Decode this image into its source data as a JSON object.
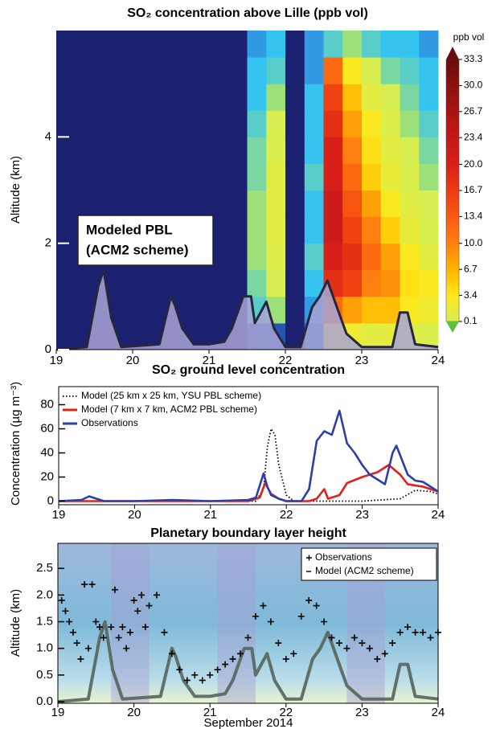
{
  "chart_data": [
    {
      "type": "heatmap",
      "title": "SO₂ concentration above Lille (ppb vol)",
      "ylabel": "Altitude (km)",
      "colorbar_label": "ppb vol",
      "annotation": [
        "Modeled PBL",
        "(ACM2 scheme)"
      ],
      "x": [
        19.125,
        19.375,
        19.625,
        19.875,
        20.125,
        20.375,
        20.625,
        20.875,
        21.125,
        21.375,
        21.625,
        21.875,
        22.125,
        22.375,
        22.625,
        22.875,
        23.125,
        23.375,
        23.625,
        23.875
      ],
      "y": [
        0.25,
        0.75,
        1.25,
        1.75,
        2.25,
        2.75,
        3.25,
        3.75,
        4.25,
        4.75,
        5.25,
        5.75
      ],
      "values": [
        [
          0,
          0,
          0,
          0,
          0,
          0,
          0,
          0,
          0,
          0,
          0,
          0
        ],
        [
          0,
          0,
          0,
          0,
          0,
          0,
          0,
          0,
          0,
          0,
          0,
          0
        ],
        [
          0,
          0,
          0,
          0,
          0,
          0,
          0,
          0,
          0,
          0,
          0,
          0
        ],
        [
          0,
          0,
          0,
          0,
          0,
          0,
          0,
          0,
          0,
          0,
          0,
          0
        ],
        [
          0,
          0,
          0,
          0,
          0,
          0,
          0,
          0,
          0,
          0,
          0,
          0
        ],
        [
          0,
          0,
          0,
          0,
          0,
          0,
          0,
          0,
          0,
          0,
          0,
          0
        ],
        [
          0,
          0,
          0,
          0,
          0,
          0,
          0,
          0,
          0,
          0,
          0,
          0
        ],
        [
          0,
          0,
          0,
          0,
          0,
          0,
          0,
          0,
          0,
          0,
          0,
          0
        ],
        [
          0,
          0,
          0,
          0,
          0,
          0,
          0,
          0,
          0,
          0,
          0,
          0
        ],
        [
          0,
          0,
          0,
          0,
          0,
          0,
          0,
          0,
          0,
          0,
          0,
          0
        ],
        [
          0.02,
          0.06,
          0.07,
          0.08,
          0.08,
          0.08,
          0.07,
          0.07,
          0.06,
          0.05,
          0.05,
          0.04
        ],
        [
          0.02,
          0.08,
          0.1,
          0.5,
          1,
          1,
          0.8,
          0.3,
          0.1,
          0.08,
          0.06,
          0.05
        ],
        [
          0,
          0,
          0,
          0,
          0,
          0,
          0,
          0,
          0,
          0,
          0,
          0
        ],
        [
          0.03,
          0.04,
          0.05,
          0.06,
          0.05,
          0.05,
          0.06,
          0.05,
          0.05,
          0.05,
          0.04,
          0.04
        ],
        [
          3,
          12,
          18,
          20,
          22,
          22,
          20,
          20,
          18,
          16,
          12,
          0.06
        ],
        [
          2,
          8,
          16,
          18,
          16,
          14,
          12,
          10,
          8,
          6,
          3,
          0.08
        ],
        [
          1,
          6,
          10,
          12,
          10,
          8,
          5,
          4,
          3,
          1,
          0.1,
          0.06
        ],
        [
          1,
          6,
          9,
          8,
          5,
          3,
          1.5,
          1,
          0.5,
          0.1,
          0.07,
          0.05
        ],
        [
          0.5,
          3,
          4,
          3,
          1.5,
          0.8,
          0.3,
          0.1,
          0.08,
          0.07,
          0.06,
          0.05
        ],
        [
          0.3,
          2,
          3,
          1,
          0.3,
          0.1,
          0.08,
          0.07,
          0.06,
          0.05,
          0.05,
          0.04
        ]
      ],
      "xlim": [
        19,
        24
      ],
      "xticks": [
        19,
        20,
        21,
        22,
        23,
        24
      ],
      "ylim": [
        0,
        6
      ],
      "yticks": [
        0,
        2,
        4
      ],
      "colorbar_ticks": [
        0.1,
        3.4,
        6.7,
        {
          "value": 10,
          "label": "10.0"
        },
        13.4,
        16.7,
        {
          "value": 20,
          "label": "20.0"
        },
        23.4,
        26.7,
        {
          "value": 30,
          "label": "30.0"
        },
        33.3
      ],
      "colorbar_colors": [
        "#d8ee50",
        "#ffe81a",
        "#ffb400",
        "#ff8010",
        "#f85a10",
        "#ee3a14",
        "#d82018",
        "#c41818",
        "#aa1414",
        "#8c1010",
        "#6a0c0c"
      ],
      "pbl": {
        "color": "#26263e",
        "fill": "#a8a4d4",
        "x": [
          19,
          19.4,
          19.55,
          19.62,
          19.72,
          19.85,
          20.35,
          20.5,
          20.55,
          20.65,
          20.8,
          21,
          21.2,
          21.3,
          21.45,
          21.55,
          21.6,
          21.75,
          21.85,
          22,
          22.2,
          22.35,
          22.45,
          22.55,
          22.65,
          22.8,
          23,
          23.4,
          23.5,
          23.6,
          23.7,
          24
        ],
        "values": [
          0,
          0.05,
          1.2,
          1.5,
          0.6,
          0.05,
          0.1,
          1,
          0.85,
          0.4,
          0.1,
          0.1,
          0.15,
          0.4,
          1,
          1,
          0.5,
          0.9,
          0.4,
          0.05,
          0.05,
          0.8,
          1,
          1.3,
          0.9,
          0.3,
          0.05,
          0.05,
          0.7,
          0.7,
          0.1,
          0.05
        ]
      }
    },
    {
      "type": "line",
      "title": "SO₂ ground level concentration",
      "ylabel": "Concentration (µg m⁻³)",
      "xlim": [
        19,
        24
      ],
      "xticks": [
        19,
        20,
        21,
        22,
        23,
        24
      ],
      "ylim": [
        -3,
        95
      ],
      "yticks": [
        0,
        20,
        40,
        60,
        80
      ],
      "legend": "upper left",
      "series": [
        {
          "name": "Model (25 km x 25 km, YSU PBL scheme)",
          "color": "#000000",
          "dash": "dotted",
          "x": [
            19,
            21.6,
            21.7,
            21.75,
            21.8,
            21.85,
            21.9,
            22,
            22.1,
            23,
            23.5,
            23.7,
            23.9,
            24
          ],
          "values": [
            0,
            0,
            10,
            45,
            60,
            55,
            30,
            5,
            0,
            0,
            2,
            9,
            8,
            6
          ]
        },
        {
          "name": "Model (7 km x 7 km, ACM2 PBL scheme)",
          "color": "#e0201c",
          "dash": "solid",
          "x": [
            19,
            21.5,
            21.65,
            21.72,
            21.8,
            21.9,
            22,
            22.3,
            22.4,
            22.5,
            22.55,
            22.7,
            22.8,
            23,
            23.2,
            23.35,
            23.5,
            23.6,
            23.8,
            24
          ],
          "values": [
            0,
            0,
            3,
            15,
            6,
            2,
            0,
            0,
            2,
            10,
            2,
            5,
            15,
            20,
            24,
            30,
            22,
            14,
            12,
            8
          ]
        },
        {
          "name": "Observations",
          "color": "#2c3ea8",
          "dash": "solid",
          "x": [
            19,
            19.3,
            19.4,
            19.5,
            19.6,
            20,
            20.5,
            21,
            21.5,
            21.6,
            21.7,
            21.75,
            21.8,
            21.9,
            22,
            22.2,
            22.3,
            22.4,
            22.5,
            22.6,
            22.7,
            22.8,
            22.9,
            23,
            23.1,
            23.2,
            23.3,
            23.4,
            23.45,
            23.5,
            23.6,
            23.7,
            23.8,
            23.9,
            24
          ],
          "values": [
            0,
            1,
            4,
            2,
            0,
            0,
            1,
            0,
            1,
            3,
            23,
            12,
            5,
            2,
            0,
            0,
            10,
            50,
            58,
            55,
            75,
            48,
            40,
            30,
            22,
            18,
            14,
            40,
            46,
            38,
            22,
            17,
            16,
            12,
            8
          ]
        }
      ]
    },
    {
      "type": "scatter",
      "title": "Planetary boundary layer height",
      "ylabel": "Altitude (km)",
      "xlabel": "September 2014",
      "xlim": [
        19,
        24
      ],
      "xticks": [
        19,
        20,
        21,
        22,
        23,
        24
      ],
      "ylim": [
        -0.03,
        2.97
      ],
      "yticks": [
        {
          "value": 0,
          "label": "0.0"
        },
        {
          "value": 0.5,
          "label": "0.5"
        },
        {
          "value": 1,
          "label": "1.0"
        },
        {
          "value": 1.5,
          "label": "1.5"
        },
        {
          "value": 2,
          "label": "2.0"
        },
        {
          "value": 2.5,
          "label": "2.5"
        }
      ],
      "legend": "upper right",
      "series": [
        {
          "name": "Observations",
          "color": "#000000",
          "x": [
            19.05,
            19.1,
            19.15,
            19.2,
            19.25,
            19.3,
            19.35,
            19.4,
            19.45,
            19.5,
            19.55,
            19.6,
            19.7,
            19.75,
            19.8,
            19.85,
            19.9,
            19.95,
            20,
            20.05,
            20.1,
            20.15,
            20.2,
            20.3,
            20.4,
            20.5,
            20.6,
            20.7,
            20.8,
            20.9,
            21,
            21.1,
            21.2,
            21.3,
            21.4,
            21.5,
            21.6,
            21.7,
            21.8,
            21.9,
            22,
            22.1,
            22.2,
            22.3,
            22.4,
            22.5,
            22.6,
            22.7,
            22.8,
            22.9,
            23,
            23.1,
            23.2,
            23.3,
            23.4,
            23.5,
            23.6,
            23.7,
            23.8,
            23.9,
            24
          ],
          "values": [
            1.9,
            1.7,
            1.5,
            1.3,
            1.1,
            0.8,
            2.2,
            1,
            2.2,
            1.5,
            1.4,
            1.2,
            1.4,
            2.1,
            1.2,
            1.4,
            1,
            1.3,
            1.9,
            1.7,
            2,
            1.4,
            1.8,
            2,
            1.3,
            0.9,
            0.6,
            0.4,
            0.5,
            0.4,
            0.5,
            0.6,
            0.7,
            0.8,
            0.9,
            1.2,
            1.6,
            1.8,
            1.5,
            1.1,
            0.8,
            0.9,
            1.6,
            1.9,
            1.8,
            1.5,
            1.2,
            1.1,
            1,
            1.2,
            1.1,
            1,
            0.8,
            0.9,
            1.1,
            1.3,
            1.4,
            1.3,
            1.3,
            1.2,
            1.3
          ]
        },
        {
          "name": "Model (ACM2 scheme)",
          "color": "#55655c",
          "x": [
            19,
            19.4,
            19.55,
            19.62,
            19.72,
            19.85,
            20.35,
            20.5,
            20.55,
            20.65,
            20.8,
            21,
            21.2,
            21.3,
            21.45,
            21.55,
            21.6,
            21.75,
            21.85,
            22,
            22.2,
            22.35,
            22.45,
            22.55,
            22.65,
            22.8,
            23,
            23.4,
            23.5,
            23.6,
            23.7,
            24
          ],
          "values": [
            0,
            0.05,
            1.2,
            1.5,
            0.6,
            0.05,
            0.1,
            1,
            0.85,
            0.4,
            0.1,
            0.1,
            0.15,
            0.4,
            1,
            1,
            0.5,
            0.9,
            0.4,
            0.05,
            0.05,
            0.8,
            1,
            1.3,
            0.9,
            0.3,
            0.05,
            0.05,
            0.7,
            0.7,
            0.1,
            0.05
          ]
        }
      ]
    }
  ]
}
